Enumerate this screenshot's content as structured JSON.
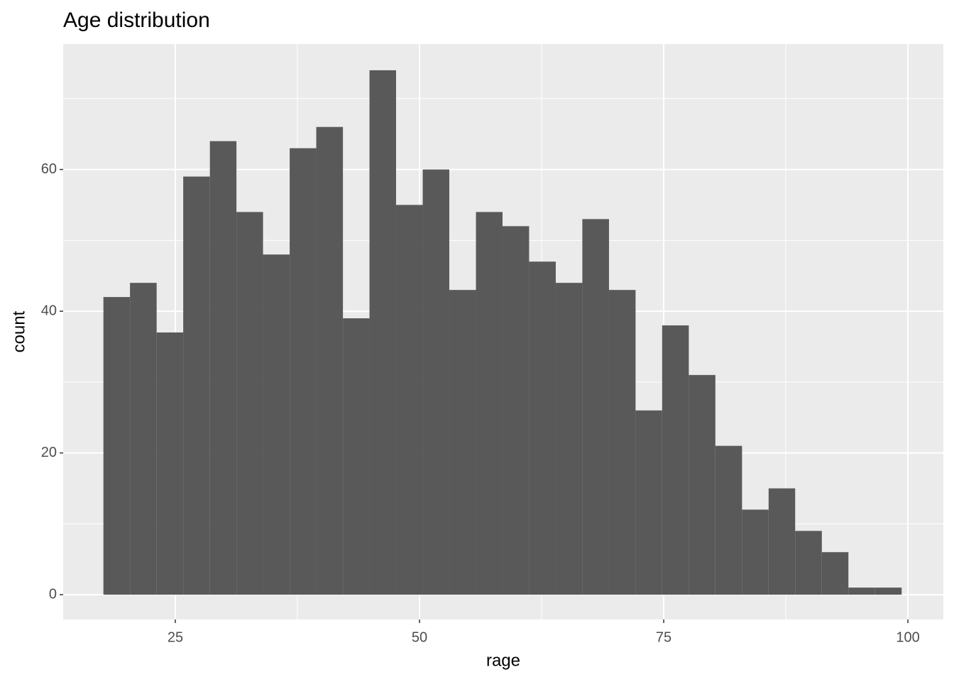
{
  "chart_data": {
    "type": "histogram",
    "title": "Age distribution",
    "x_label": "rage",
    "y_label": "count",
    "bins": [
      17.64,
      20.36,
      23.09,
      25.81,
      28.54,
      31.26,
      33.98,
      36.71,
      39.43,
      42.16,
      44.88,
      47.6,
      50.33,
      53.05,
      55.78,
      58.5,
      61.22,
      63.95,
      66.67,
      69.4,
      72.12,
      74.84,
      77.57,
      80.29,
      83.02,
      85.74,
      88.46,
      91.19,
      93.91,
      96.64,
      99.36
    ],
    "values": [
      42,
      44,
      37,
      59,
      64,
      54,
      48,
      63,
      66,
      39,
      74,
      55,
      60,
      43,
      54,
      52,
      47,
      44,
      53,
      43,
      26,
      38,
      31,
      21,
      12,
      15,
      9,
      6,
      1,
      1
    ],
    "color": "#595959",
    "panel_color": "#ebebeb",
    "xlim": [
      13.52,
      103.63
    ],
    "xticks": [
      25,
      50,
      75,
      100
    ],
    "xminor": [
      37.5,
      62.5,
      87.5
    ],
    "ylim": [
      -3.5,
      77.7
    ],
    "yticks": [
      0,
      20,
      40,
      60
    ],
    "yminor": [
      10,
      30,
      50,
      70
    ],
    "grid": true
  }
}
